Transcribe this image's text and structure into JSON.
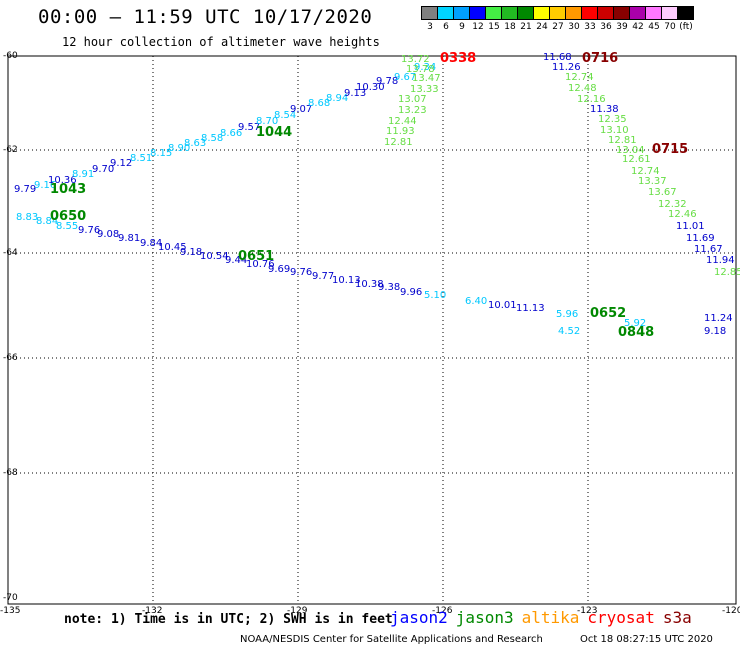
{
  "header": {
    "title": "00:00 – 11:59 UTC 10/17/2020",
    "subtitle": "12 hour collection of altimeter wave heights"
  },
  "colorbar": {
    "labels": [
      "3",
      "6",
      "9",
      "12",
      "15",
      "18",
      "21",
      "24",
      "27",
      "30",
      "33",
      "36",
      "39",
      "42",
      "45",
      "70",
      "(ft)"
    ],
    "colors": [
      "#808080",
      "#00d4ff",
      "#00a0ff",
      "#0000ff",
      "#44ee44",
      "#22bb22",
      "#008800",
      "#ffff00",
      "#ffcc00",
      "#ff9900",
      "#ff0000",
      "#cc0000",
      "#880000",
      "#aa00aa",
      "#ff77ff",
      "#ffccff",
      "#000000"
    ]
  },
  "axes": {
    "lat_labels": [
      "-60",
      "-62",
      "-64",
      "-66",
      "-68",
      "-70"
    ],
    "lon_labels": [
      "-135",
      "-132",
      "-129",
      "-126",
      "-123",
      "-120"
    ]
  },
  "tracks": [
    {
      "color": "#00c8ff",
      "labels": [
        "9.79",
        "9.16",
        "10.36",
        "8.91",
        "9.70",
        "9.12",
        "8.51",
        "8.15",
        "8.90",
        "8.63",
        "8.58",
        "8.66",
        "9.57",
        "8.70",
        "8.54",
        "9.07",
        "8.68",
        "8.94",
        "9.13",
        "10.30",
        "9.78",
        "9.67",
        "9.34"
      ]
    },
    {
      "color": "#66dd44",
      "labels": [
        "13.72",
        "13.78",
        "13.47",
        "13.33",
        "13.07",
        "13.23",
        "12.44",
        "11.93",
        "12.81"
      ]
    },
    {
      "color": "#00c8ff",
      "labels": [
        "8.83",
        "8.84",
        "8.55",
        "9.76",
        "9.08",
        "9.81",
        "9.84",
        "10.45",
        "9.18",
        "10.54",
        "9.44",
        "10.76",
        "9.69",
        "9.76",
        "9.77",
        "10.13",
        "10.38",
        "9.38",
        "9.96",
        "5.10",
        "6.40",
        "10.01",
        "11.13",
        "5.96",
        "4.52",
        "5.92"
      ]
    },
    {
      "color": "#66dd44",
      "labels": [
        "11.68",
        "11.26",
        "12.74",
        "12.48",
        "12.16",
        "11.38",
        "12.35",
        "13.10",
        "12.81",
        "13.04",
        "12.61",
        "12.74",
        "13.37",
        "13.67",
        "12.32",
        "12.46",
        "11.01",
        "11.69",
        "11.67",
        "11.94",
        "12.85",
        "11.24",
        "9.18"
      ]
    }
  ],
  "time_labels": [
    {
      "text": "1043",
      "color": "#008800"
    },
    {
      "text": "0650",
      "color": "#008800"
    },
    {
      "text": "1044",
      "color": "#008800"
    },
    {
      "text": "0651",
      "color": "#008800"
    },
    {
      "text": "0338",
      "color": "#ff0000"
    },
    {
      "text": "0716",
      "color": "#880000"
    },
    {
      "text": "0715",
      "color": "#880000"
    },
    {
      "text": "0652",
      "color": "#008800"
    },
    {
      "text": "0848",
      "color": "#008800"
    }
  ],
  "footer": {
    "note": "note: 1) Time is in UTC; 2) SWH is in feet",
    "satellites": [
      {
        "name": "jason2",
        "color": "#0000ff"
      },
      {
        "name": "jason3",
        "color": "#008800"
      },
      {
        "name": "altika",
        "color": "#ff9900"
      },
      {
        "name": "cryosat",
        "color": "#ff0000"
      },
      {
        "name": "s3a",
        "color": "#880000"
      }
    ],
    "credit": "NOAA/NESDIS Center for Satellite Applications and Research",
    "timestamp": "Oct 18 08:27:15 UTC 2020"
  }
}
